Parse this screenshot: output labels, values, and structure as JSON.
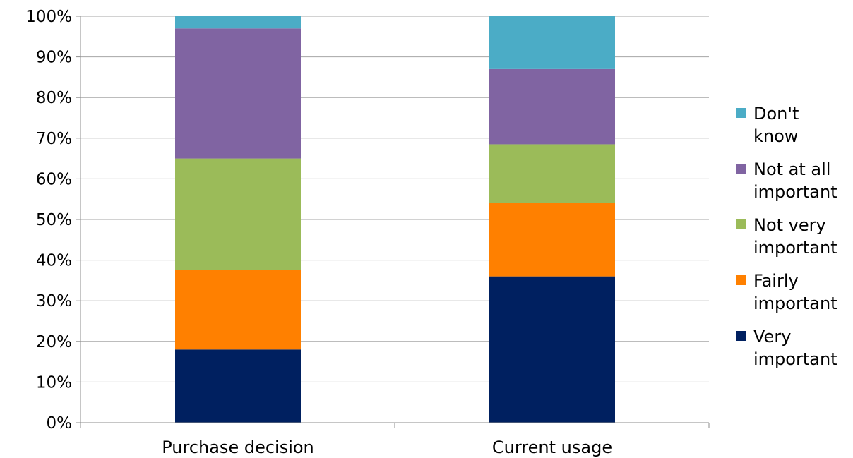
{
  "chart_data": {
    "type": "bar",
    "stacked": true,
    "percent_stacked": true,
    "categories": [
      "Purchase decision",
      "Current usage"
    ],
    "series": [
      {
        "name": "Very important",
        "name_lines": [
          "Very",
          "important"
        ],
        "color": "#002060",
        "values": [
          18,
          36
        ]
      },
      {
        "name": "Fairly important",
        "name_lines": [
          "Fairly",
          "important"
        ],
        "color": "#FF8000",
        "values": [
          19.5,
          18
        ]
      },
      {
        "name": "Not very important",
        "name_lines": [
          "Not very",
          "important"
        ],
        "color": "#9BBB59",
        "values": [
          27.5,
          14.5
        ]
      },
      {
        "name": "Not at all important",
        "name_lines": [
          "Not at all",
          "important"
        ],
        "color": "#8064A2",
        "values": [
          32,
          18.5
        ]
      },
      {
        "name": "Don't know",
        "name_lines": [
          "Don't",
          "know"
        ],
        "color": "#4BACC6",
        "values": [
          3,
          13
        ]
      }
    ],
    "y_ticks": [
      "0%",
      "10%",
      "20%",
      "30%",
      "40%",
      "50%",
      "60%",
      "70%",
      "80%",
      "90%",
      "100%"
    ],
    "ylim": [
      0,
      100
    ],
    "grid": true,
    "legend_position": "right",
    "title": "",
    "xlabel": "",
    "ylabel": ""
  }
}
